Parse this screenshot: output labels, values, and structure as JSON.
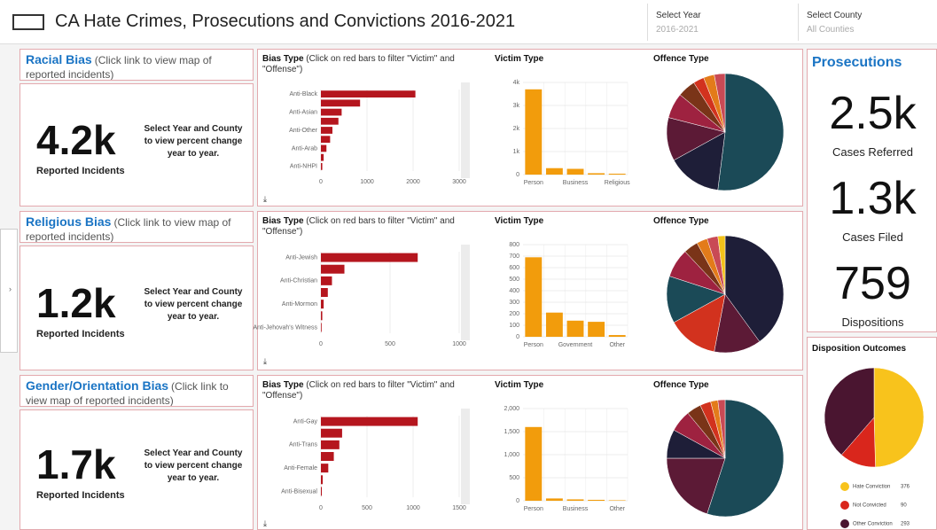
{
  "header": {
    "title": "CA Hate Crimes, Prosecutions and Convictions 2016-2021"
  },
  "filters": [
    {
      "label": "Select Year",
      "value": "2016-2021"
    },
    {
      "label": "Select County",
      "value": "All Counties"
    }
  ],
  "sections": [
    {
      "link": "Racial Bias",
      "link_note": "(Click link to view map of reported incidents)",
      "kpi": "4.2k",
      "kpi_label": "Reported Incidents",
      "prompt": "Select Year and County to view percent change year to year."
    },
    {
      "link": "Religious Bias",
      "link_note": "(Click link to view map of reported incidents)",
      "kpi": "1.2k",
      "kpi_label": "Reported Incidents",
      "prompt": "Select Year and County to view percent change year to year."
    },
    {
      "link": "Gender/Orientation Bias",
      "link_note": "(Click link to view map of reported incidents)",
      "kpi": "1.7k",
      "kpi_label": "Reported Incidents",
      "prompt": "Select Year and County to view percent change year to year."
    }
  ],
  "prosecutions": {
    "title": "Prosecutions",
    "metrics": [
      {
        "value": "2.5k",
        "label": "Cases Referred"
      },
      {
        "value": "1.3k",
        "label": "Cases Filed"
      },
      {
        "value": "759",
        "label": "Dispositions"
      }
    ]
  },
  "chart_data": [
    {
      "type": "hbar",
      "title": "Bias Type",
      "subtitle": "(Click on red bars to filter \"Victim\" and \"Offense\")",
      "categories": [
        "Anti-Black",
        null,
        "Anti-Asian",
        null,
        "Anti-Other",
        null,
        "Anti-Arab",
        null,
        "Anti-NHPI"
      ],
      "values": [
        2050,
        850,
        450,
        380,
        250,
        200,
        120,
        60,
        30
      ],
      "color": "#b5161e",
      "xlim": [
        0,
        3000
      ],
      "xticks": [
        0,
        1000,
        2000,
        3000
      ]
    },
    {
      "type": "vbar",
      "title": "Victim Type",
      "categories": [
        "Person",
        null,
        "Business",
        null,
        "Religious"
      ],
      "values": [
        3700,
        280,
        250,
        60,
        40
      ],
      "color": "#f29c0c",
      "ylim": [
        0,
        4000
      ],
      "yticks": [
        0,
        {
          "value": 1000,
          "label": "1k"
        },
        {
          "value": 2000,
          "label": "2k"
        },
        {
          "value": 3000,
          "label": "3k"
        },
        {
          "value": 4000,
          "label": "4k"
        }
      ],
      "grid": true
    },
    {
      "type": "pie",
      "title": "Offence Type",
      "values": [
        52,
        15,
        12,
        7,
        5,
        3,
        3,
        3
      ],
      "colors": [
        "#1b4a57",
        "#1e1e38",
        "#5c1a36",
        "#9e2240",
        "#7a3418",
        "#d2321e",
        "#e37b1a",
        "#c94a55"
      ]
    },
    {
      "type": "hbar",
      "title": "Bias Type",
      "subtitle": "(Click on red bars to filter \"Victim\" and \"Offense\")",
      "categories": [
        "Anti-Jewish",
        null,
        "Anti-Christian",
        null,
        "Anti-Mormon",
        null,
        "Anti-Jehovah's Witness"
      ],
      "values": [
        700,
        170,
        80,
        50,
        20,
        10,
        5
      ],
      "color": "#b5161e",
      "xlim": [
        0,
        1000
      ],
      "xticks": [
        0,
        500,
        1000
      ]
    },
    {
      "type": "vbar",
      "title": "Victim Type",
      "categories": [
        "Person",
        null,
        "Government",
        null,
        "Other"
      ],
      "values": [
        690,
        210,
        140,
        130,
        15
      ],
      "color": "#f29c0c",
      "ylim": [
        0,
        800
      ],
      "yticks": [
        0,
        100,
        200,
        300,
        400,
        500,
        600,
        700,
        800
      ],
      "grid": true
    },
    {
      "type": "pie",
      "title": "Offence Type",
      "values": [
        40,
        13,
        14,
        13,
        8,
        4,
        3,
        3,
        2
      ],
      "colors": [
        "#1e1e38",
        "#5c1a36",
        "#d2321e",
        "#1b4a57",
        "#9e2240",
        "#7a3418",
        "#e37b1a",
        "#c94a55",
        "#f2c21a"
      ]
    },
    {
      "type": "hbar",
      "title": "Bias Type",
      "subtitle": "(Click on red bars to filter \"Victim\" and \"Offense\")",
      "categories": [
        "Anti-Gay",
        null,
        "Anti-Trans",
        null,
        "Anti-Female",
        null,
        "Anti-Bisexual"
      ],
      "values": [
        1050,
        230,
        200,
        140,
        80,
        20,
        10
      ],
      "color": "#b5161e",
      "xlim": [
        0,
        1500
      ],
      "xticks": [
        0,
        500,
        1000,
        1500
      ]
    },
    {
      "type": "vbar",
      "title": "Victim Type",
      "categories": [
        "Person",
        null,
        "Business",
        null,
        "Other"
      ],
      "values": [
        1600,
        50,
        30,
        20,
        10
      ],
      "color": "#f29c0c",
      "ylim": [
        0,
        2000
      ],
      "yticks": [
        0,
        500,
        {
          "value": 1000,
          "label": "1,000"
        },
        {
          "value": 1500,
          "label": "1,500"
        },
        {
          "value": 2000,
          "label": "2,000"
        }
      ],
      "grid": true
    },
    {
      "type": "pie",
      "title": "Offence Type",
      "values": [
        55,
        20,
        8,
        6,
        4,
        3,
        2,
        2
      ],
      "colors": [
        "#1b4a57",
        "#5c1a36",
        "#1e1e38",
        "#9e2240",
        "#7a3418",
        "#d2321e",
        "#e37b1a",
        "#c94a55"
      ]
    },
    {
      "type": "pie",
      "title": "Disposition Outcomes",
      "categories": [
        "Hate Conviction",
        "Not Convicted",
        "Other Conviction"
      ],
      "values": [
        376,
        90,
        293
      ],
      "colors": [
        "#f8c31c",
        "#d9261c",
        "#4a1530"
      ],
      "legend": "bottom"
    }
  ]
}
